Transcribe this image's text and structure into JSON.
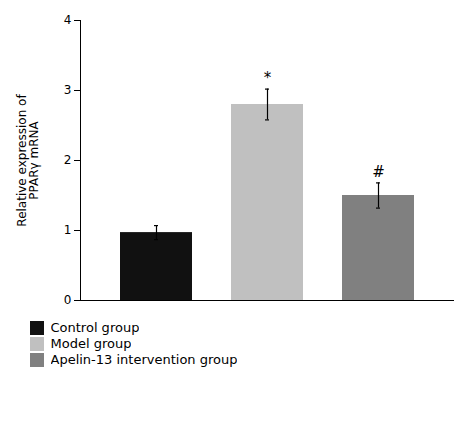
{
  "chart_data": {
    "type": "bar",
    "categories": [
      "Control group",
      "Model group",
      "Apelin-13 intervention group"
    ],
    "values": [
      0.97,
      2.8,
      1.5
    ],
    "errors": [
      0.1,
      0.22,
      0.18
    ],
    "colors": [
      "#111111",
      "#c0c0c0",
      "#808080"
    ],
    "annotations": [
      null,
      "*",
      "#"
    ],
    "ylabel": "Relative expression of\nPPARγ mRNA",
    "ylim": [
      0,
      4
    ],
    "yticks": [
      0,
      1,
      2,
      3,
      4
    ],
    "tick_labels": "y",
    "legend": "bottom",
    "grid": false
  }
}
